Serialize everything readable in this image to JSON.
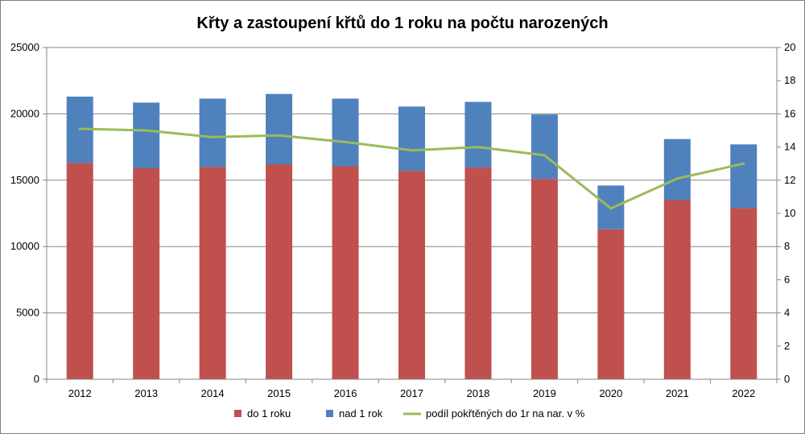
{
  "chart_data": {
    "type": "bar",
    "stacked": true,
    "title": "Křty a zastoupení křtů do 1 roku na počtu narozených",
    "categories": [
      "2012",
      "2013",
      "2014",
      "2015",
      "2016",
      "2017",
      "2018",
      "2019",
      "2020",
      "2021",
      "2022"
    ],
    "series": [
      {
        "name": "do 1 roku",
        "type": "bar",
        "axis": "left",
        "color": "#c0504d",
        "values": [
          16300,
          15900,
          16000,
          16200,
          16050,
          15700,
          15950,
          15100,
          11300,
          13500,
          12900
        ]
      },
      {
        "name": "nad 1 rok",
        "type": "bar",
        "axis": "left",
        "color": "#4f81bd",
        "values": [
          5000,
          4950,
          5150,
          5300,
          5100,
          4850,
          4950,
          4850,
          3300,
          4600,
          4800
        ]
      },
      {
        "name": "podíl pokřtěných do 1r na nar. v %",
        "type": "line",
        "axis": "right",
        "color": "#9bbb59",
        "values": [
          15.1,
          15.0,
          14.6,
          14.7,
          14.3,
          13.8,
          14.0,
          13.5,
          10.3,
          12.1,
          13.0
        ]
      }
    ],
    "ylim_left": [
      0,
      25000
    ],
    "yticks_left": [
      "0",
      "5000",
      "10000",
      "15000",
      "20000",
      "25000"
    ],
    "ylim_right": [
      0,
      20
    ],
    "yticks_right": [
      "0",
      "2",
      "4",
      "6",
      "8",
      "10",
      "12",
      "14",
      "16",
      "18",
      "20"
    ],
    "grid": true,
    "legend_position": "bottom"
  }
}
